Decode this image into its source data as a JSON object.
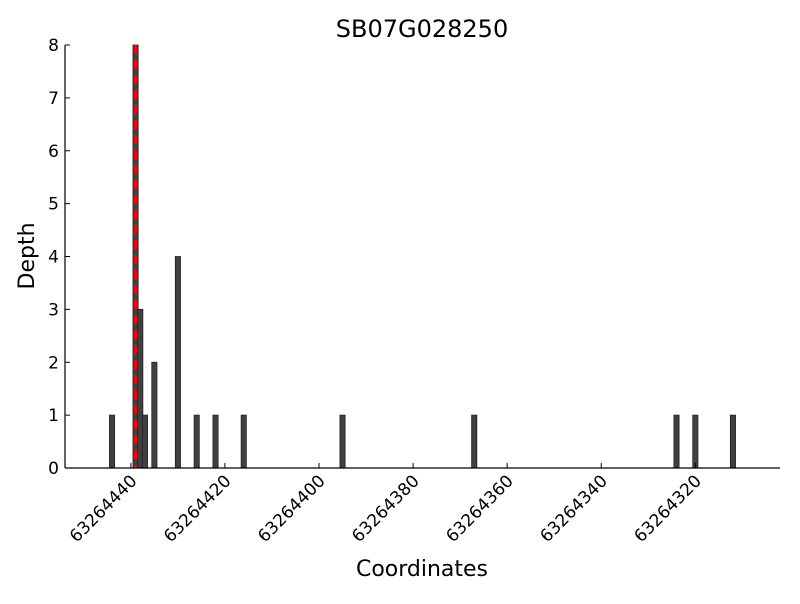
{
  "chart_data": {
    "type": "bar",
    "title": "SB07G028250",
    "xlabel": "Coordinates",
    "ylabel": "Depth",
    "x_reversed": true,
    "xlim": [
      63264454,
      63264302
    ],
    "ylim": [
      0,
      8
    ],
    "xticks": [
      63264440,
      63264420,
      63264400,
      63264380,
      63264360,
      63264340,
      63264320
    ],
    "yticks": [
      0,
      1,
      2,
      3,
      4,
      5,
      6,
      7,
      8
    ],
    "grid": false,
    "bar_color": "#404040",
    "series": [
      {
        "x": [
          63264444,
          63264439,
          63264438,
          63264437,
          63264435,
          63264430,
          63264426,
          63264422,
          63264416,
          63264395,
          63264367,
          63264324,
          63264320,
          63264312
        ],
        "values": [
          1,
          8,
          3,
          1,
          2,
          4,
          1,
          1,
          1,
          1,
          1,
          1,
          1,
          1
        ]
      }
    ],
    "marker_line": {
      "x": 63264439,
      "color": "#ff0000",
      "style": "dashed"
    }
  }
}
